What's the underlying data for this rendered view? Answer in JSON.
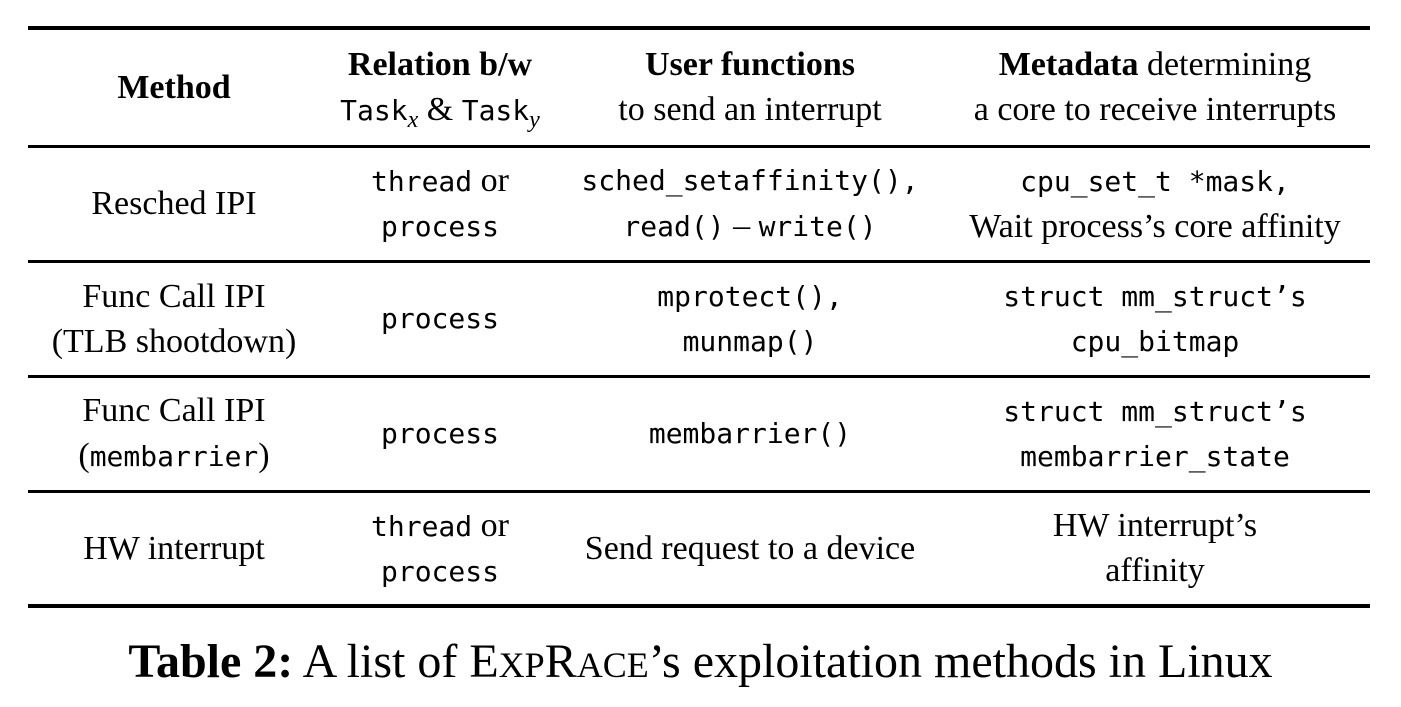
{
  "table": {
    "headers": {
      "method": "Method",
      "relation_bold": "Relation b/w",
      "relation_task_x": "Task",
      "relation_x": "x",
      "relation_amp": " & ",
      "relation_task_y": "Task",
      "relation_y": "y",
      "user_bold": "User functions",
      "user_rest": "to send an interrupt",
      "metadata_bold": "Metadata",
      "metadata_rest1": " determining",
      "metadata_rest2": "a core to receive interrupts"
    },
    "rows": [
      {
        "method": [
          "Resched IPI"
        ],
        "relation_a": "thread",
        "relation_or": " or",
        "relation_b": "process",
        "user_l1": "sched_setaffinity(),",
        "user_l2_a": "read()",
        "user_l2_sep": " – ",
        "user_l2_b": "write()",
        "meta_l1": "cpu_set_t *mask,",
        "meta_l2": "Wait process’s core affinity"
      },
      {
        "method": [
          "Func Call IPI",
          "(TLB shootdown)"
        ],
        "relation": "process",
        "user_l1": "mprotect(),",
        "user_l2": "munmap()",
        "meta_l1": "struct mm_struct’s",
        "meta_l2": "cpu_bitmap"
      },
      {
        "method_l1": "Func Call IPI",
        "method_l2_open": "(",
        "method_l2_mono": "membarrier",
        "method_l2_close": ")",
        "relation": "process",
        "user": "membarrier()",
        "meta_l1": "struct mm_struct’s",
        "meta_l2": "membarrier_state"
      },
      {
        "method": [
          "HW interrupt"
        ],
        "relation_a": "thread",
        "relation_or": " or",
        "relation_b": "process",
        "user": "Send request to a device",
        "meta_l1": "HW interrupt’s",
        "meta_l2": "affinity"
      }
    ]
  },
  "caption": {
    "label": "Table 2:",
    "text_pre": " A list of ",
    "name_E": "E",
    "name_XP": "XP",
    "name_R": "R",
    "name_ACE": "ACE",
    "text_post": "’s exploitation methods in Linux"
  }
}
